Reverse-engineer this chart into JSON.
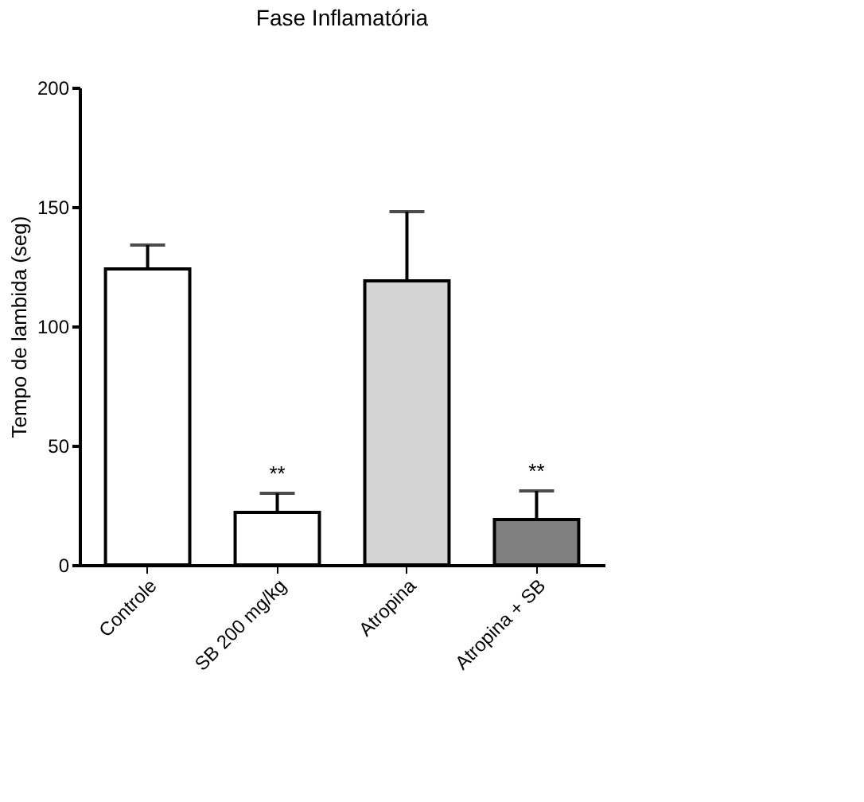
{
  "chart_data": {
    "type": "bar",
    "title": "Fase Inflamatória",
    "ylabel": "Tempo de lambida (seg)",
    "categories": [
      "Controle",
      "SB 200 mg/kg",
      "Atropina",
      "Atropina + SB"
    ],
    "values": [
      124,
      22,
      119,
      19
    ],
    "colors": [
      "#ffffff",
      "#ffffff",
      "#d4d4d4",
      "#808080"
    ],
    "errors": [
      [
        124,
        134
      ],
      [
        22,
        30
      ],
      [
        119,
        148
      ],
      [
        19,
        31
      ]
    ],
    "ylim": [
      0,
      200
    ],
    "yticks": [
      0,
      50,
      100,
      150,
      200
    ],
    "grid": false,
    "annotations": [
      {
        "text": "**",
        "x": "SB 200 mg/kg",
        "y": 30
      },
      {
        "text": "**",
        "x": "Atropina + SB",
        "y": 31
      }
    ]
  }
}
